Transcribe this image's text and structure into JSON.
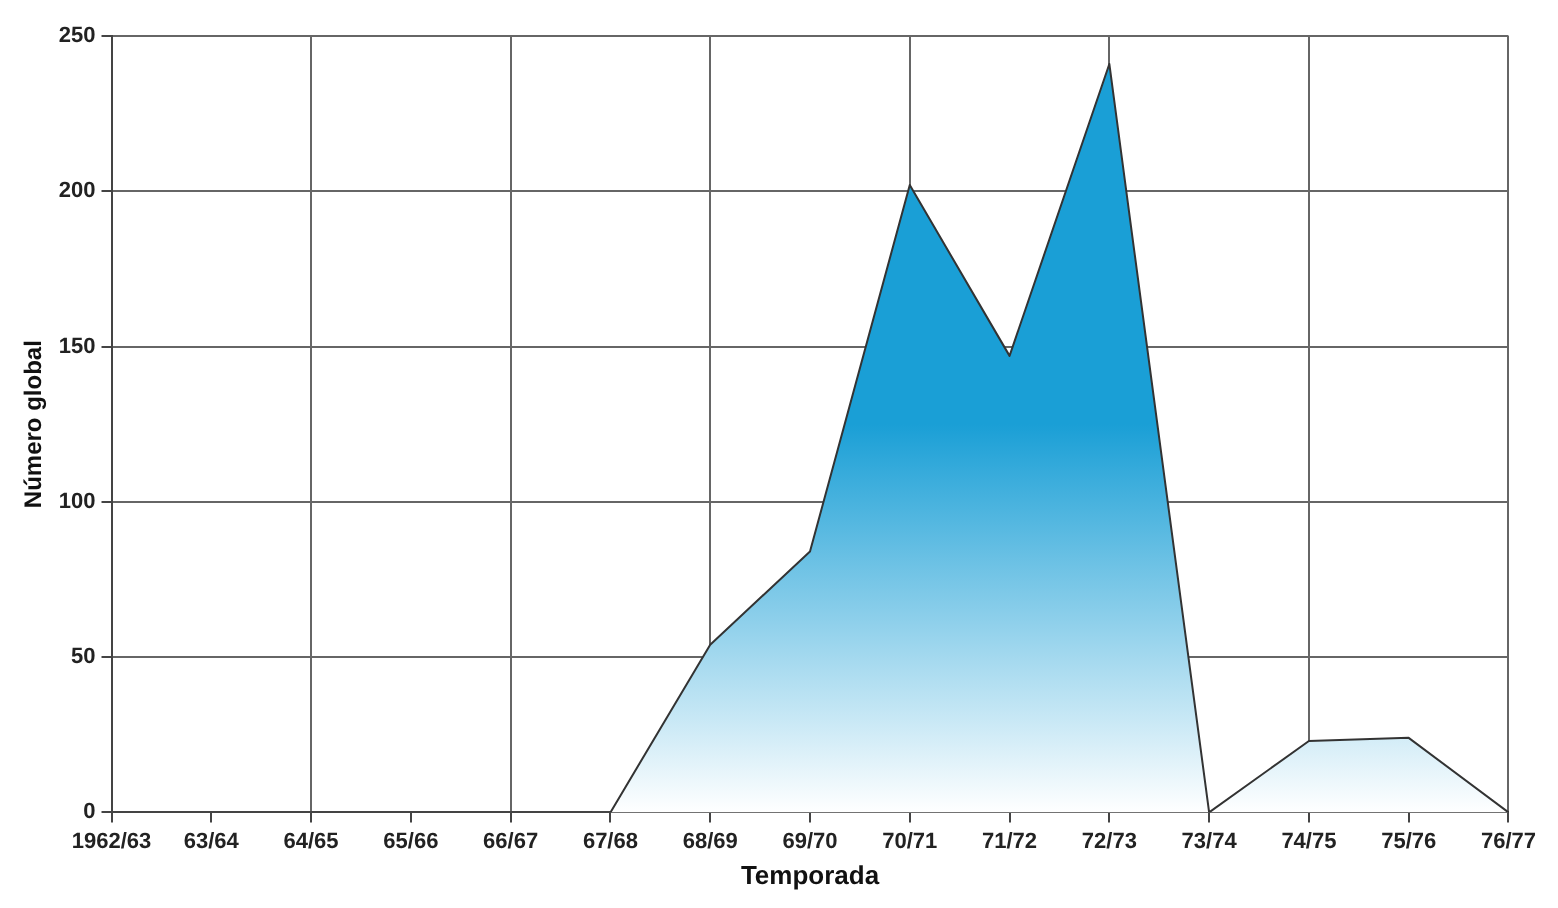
{
  "chart_data": {
    "type": "area",
    "xlabel": "Temporada",
    "ylabel": "Número global",
    "categories": [
      "1962/63",
      "63/64",
      "64/65",
      "65/66",
      "66/67",
      "67/68",
      "68/69",
      "69/70",
      "70/71",
      "71/72",
      "72/73",
      "73/74",
      "74/75",
      "75/76",
      "76/77"
    ],
    "series": [
      {
        "color": "#1a9fd6",
        "values": [
          null,
          null,
          null,
          null,
          null,
          0,
          54,
          84,
          202,
          147,
          241,
          0,
          23,
          24,
          0
        ]
      }
    ],
    "ylim": [
      0,
      250
    ],
    "yticks": [
      0,
      50,
      100,
      150,
      200,
      250
    ],
    "grid": true,
    "legend": false
  }
}
